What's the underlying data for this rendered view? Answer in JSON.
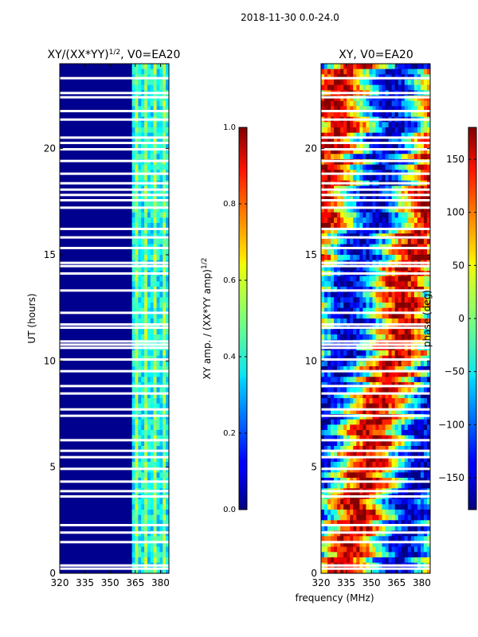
{
  "figure_title": "2018-11-30 0.0-24.0",
  "chart_data": [
    {
      "type": "heatmap",
      "title": "XY/(XX*YY)^{1/2}, V0=EA20",
      "title_main": "XY/(XX*YY)",
      "title_sup": "1/2",
      "title_tail": ", V0=EA20",
      "xlabel": "frequency (MHz)",
      "ylabel": "UT (hours)",
      "xlim": [
        320,
        385
      ],
      "ylim": [
        0,
        24
      ],
      "xticks": [
        320,
        335,
        350,
        365,
        380
      ],
      "yticks": [
        0,
        5,
        10,
        15,
        20
      ],
      "band_edge_mhz": 363,
      "colorbar": {
        "label_main": "XY amp. / (XX*YY amp)",
        "label_sup": "1/2",
        "range": [
          0.0,
          1.0
        ],
        "ticks": [
          "0.0",
          "0.2",
          "0.4",
          "0.6",
          "0.8",
          "1.0"
        ]
      }
    },
    {
      "type": "heatmap",
      "title": "XY, V0=EA20",
      "xlabel": "frequency (MHz)",
      "ylabel": "",
      "xlim": [
        320,
        385
      ],
      "ylim": [
        0,
        24
      ],
      "xticks": [
        320,
        335,
        350,
        365,
        380
      ],
      "yticks": [
        0,
        5,
        10,
        15,
        20
      ],
      "colorbar": {
        "label": "phase (deg)",
        "range": [
          -180,
          180
        ],
        "ticks": [
          "−150",
          "−100",
          "−50",
          "0",
          "50",
          "100",
          "150"
        ],
        "tick_values": [
          -150,
          -100,
          -50,
          0,
          50,
          100,
          150
        ]
      }
    }
  ],
  "flagged_hours": [
    0.2,
    0.35,
    1.45,
    1.9,
    2.25,
    3.6,
    3.85,
    4.3,
    4.9,
    5.45,
    5.75,
    6.25,
    7.4,
    7.7,
    8.45,
    8.8,
    9.5,
    10.05,
    10.6,
    10.75,
    10.9,
    11.55,
    11.7,
    12.25,
    13.3,
    14.1,
    14.45,
    14.6,
    15.3,
    15.8,
    16.2,
    17.2,
    17.55,
    17.8,
    18.05,
    18.35,
    18.8,
    19.4,
    19.95,
    20.25,
    20.5,
    21.35,
    21.75,
    22.4,
    22.6,
    23.3
  ],
  "colors": {
    "background": "#ffffff",
    "axis": "#000000",
    "flag_gap": "#ffffff"
  }
}
